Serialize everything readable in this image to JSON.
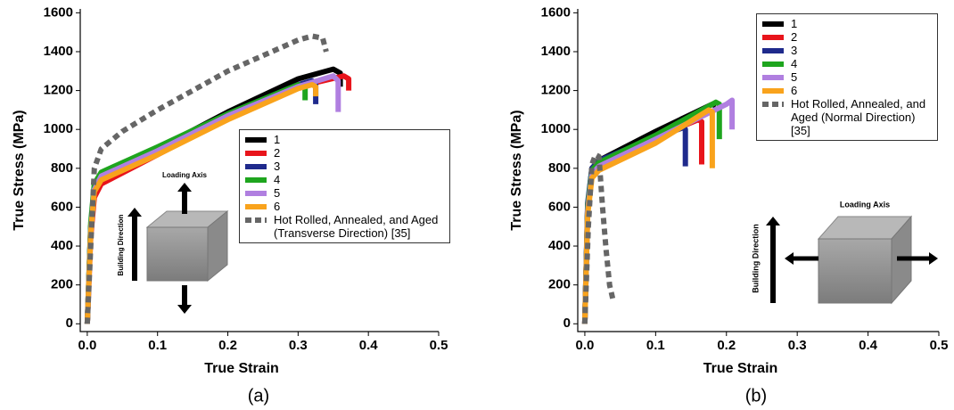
{
  "chart_data": [
    {
      "type": "line",
      "panel_label": "(a)",
      "x_label": "True Strain",
      "y_label": "True Stress (MPa)",
      "xlim": [
        -0.01,
        0.5
      ],
      "ylim": [
        -40,
        1620
      ],
      "xticks": [
        {
          "value": 0,
          "label": "0.0"
        },
        0.1,
        0.2,
        0.3,
        0.4,
        0.5
      ],
      "yticks": [
        0,
        200,
        400,
        600,
        800,
        1000,
        1200,
        1400,
        1600
      ],
      "inset_labels": [
        "Loading Axis",
        "Building Direction"
      ],
      "series": [
        {
          "name": "1",
          "color": "#000000",
          "style": "solid",
          "x": [
            0,
            0.005,
            0.01,
            0.02,
            0.1,
            0.2,
            0.3,
            0.35,
            0.36,
            0.36
          ],
          "values": [
            0,
            500,
            700,
            760,
            900,
            1090,
            1260,
            1310,
            1290,
            1220
          ]
        },
        {
          "name": "2",
          "color": "#e8141b",
          "style": "solid",
          "x": [
            0,
            0.005,
            0.01,
            0.02,
            0.1,
            0.2,
            0.3,
            0.365,
            0.372,
            0.372
          ],
          "values": [
            0,
            450,
            650,
            720,
            870,
            1060,
            1220,
            1275,
            1260,
            1200
          ]
        },
        {
          "name": "3",
          "color": "#1f2a8c",
          "style": "solid",
          "x": [
            0,
            0.005,
            0.01,
            0.02,
            0.1,
            0.2,
            0.3,
            0.32,
            0.325,
            0.325
          ],
          "values": [
            0,
            500,
            700,
            770,
            900,
            1080,
            1230,
            1250,
            1230,
            1130
          ]
        },
        {
          "name": "4",
          "color": "#1ea51e",
          "style": "solid",
          "x": [
            0,
            0.005,
            0.01,
            0.02,
            0.1,
            0.2,
            0.3,
            0.31,
            0.31
          ],
          "values": [
            0,
            520,
            720,
            780,
            910,
            1080,
            1230,
            1220,
            1150
          ]
        },
        {
          "name": "5",
          "color": "#b07fe0",
          "style": "solid",
          "x": [
            0,
            0.005,
            0.01,
            0.02,
            0.1,
            0.2,
            0.3,
            0.35,
            0.357,
            0.357
          ],
          "values": [
            0,
            480,
            690,
            760,
            890,
            1070,
            1220,
            1275,
            1250,
            1090
          ]
        },
        {
          "name": "6",
          "color": "#f9a31c",
          "style": "solid",
          "x": [
            0,
            0.005,
            0.01,
            0.02,
            0.1,
            0.2,
            0.3,
            0.32,
            0.325,
            0.325
          ],
          "values": [
            0,
            470,
            680,
            740,
            870,
            1050,
            1210,
            1230,
            1220,
            1170
          ]
        },
        {
          "name": "Hot Rolled, Annealed, and Aged (Transverse Direction) [35]",
          "color": "#666666",
          "style": "dashed",
          "x": [
            0,
            0.005,
            0.01,
            0.02,
            0.05,
            0.1,
            0.2,
            0.3,
            0.32,
            0.335,
            0.34
          ],
          "values": [
            0,
            400,
            800,
            900,
            990,
            1100,
            1300,
            1460,
            1480,
            1470,
            1400
          ]
        }
      ]
    },
    {
      "type": "line",
      "panel_label": "(b)",
      "x_label": "True Strain",
      "y_label": "True Stress (MPa)",
      "xlim": [
        -0.01,
        0.5
      ],
      "ylim": [
        -40,
        1620
      ],
      "xticks": [
        {
          "value": 0,
          "label": "0.0"
        },
        0.1,
        0.2,
        0.3,
        0.4,
        0.5
      ],
      "yticks": [
        0,
        200,
        400,
        600,
        800,
        1000,
        1200,
        1400,
        1600
      ],
      "inset_labels": [
        "Loading Axis",
        "Building Direction"
      ],
      "series": [
        {
          "name": "1",
          "color": "#000000",
          "style": "solid",
          "x": [
            0,
            0.004,
            0.01,
            0.02,
            0.1,
            0.18,
            0.185
          ],
          "values": [
            0,
            600,
            800,
            840,
            990,
            1130,
            1120
          ]
        },
        {
          "name": "2",
          "color": "#e8141b",
          "style": "solid",
          "x": [
            0,
            0.004,
            0.01,
            0.02,
            0.1,
            0.16,
            0.165,
            0.165
          ],
          "values": [
            0,
            580,
            780,
            820,
            960,
            1050,
            1040,
            820
          ]
        },
        {
          "name": "3",
          "color": "#1f2a8c",
          "style": "solid",
          "x": [
            0,
            0.004,
            0.01,
            0.02,
            0.1,
            0.14,
            0.142,
            0.142
          ],
          "values": [
            0,
            620,
            800,
            840,
            960,
            1010,
            1000,
            810
          ]
        },
        {
          "name": "4",
          "color": "#1ea51e",
          "style": "solid",
          "x": [
            0,
            0.004,
            0.01,
            0.02,
            0.1,
            0.185,
            0.19,
            0.19
          ],
          "values": [
            0,
            600,
            790,
            830,
            970,
            1140,
            1130,
            950
          ]
        },
        {
          "name": "5",
          "color": "#b07fe0",
          "style": "solid",
          "x": [
            0,
            0.004,
            0.01,
            0.02,
            0.1,
            0.2,
            0.208,
            0.208
          ],
          "values": [
            0,
            580,
            770,
            810,
            950,
            1130,
            1150,
            1000
          ]
        },
        {
          "name": "6",
          "color": "#f9a31c",
          "style": "solid",
          "x": [
            0,
            0.004,
            0.01,
            0.02,
            0.1,
            0.175,
            0.18,
            0.18
          ],
          "values": [
            0,
            560,
            750,
            790,
            930,
            1100,
            1090,
            800
          ]
        },
        {
          "name": "Hot Rolled, Annealed, and Aged (Normal Direction) [35]",
          "color": "#666666",
          "style": "dashed",
          "x": [
            0,
            0.005,
            0.01,
            0.015,
            0.02,
            0.025,
            0.03,
            0.035,
            0.04
          ],
          "values": [
            0,
            500,
            820,
            870,
            860,
            600,
            380,
            200,
            120
          ]
        }
      ]
    }
  ]
}
